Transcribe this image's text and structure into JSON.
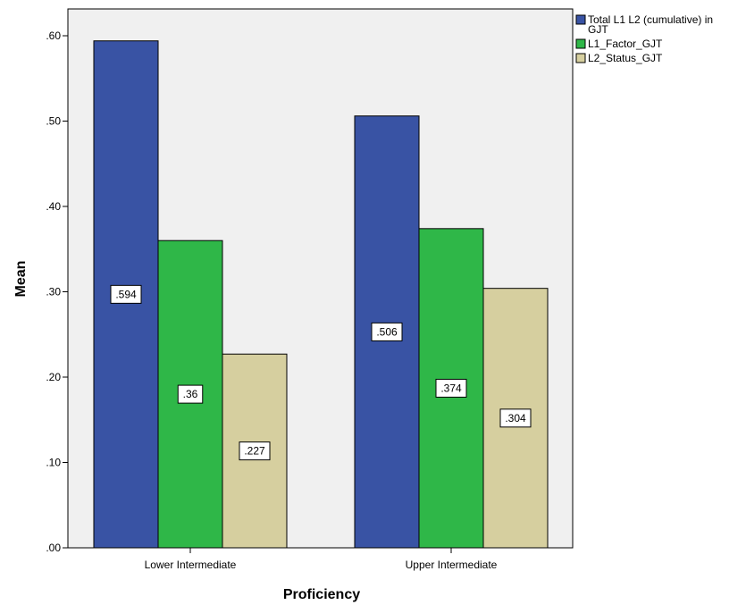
{
  "chart_data": {
    "type": "bar",
    "xlabel": "Proficiency",
    "ylabel": "Mean",
    "categories": [
      "Lower Intermediate",
      "Upper Intermediate"
    ],
    "ylim": [
      0,
      0.65
    ],
    "yticks": [
      ".00",
      ".10",
      ".20",
      ".30",
      ".40",
      ".50",
      ".60"
    ],
    "ytick_values": [
      0,
      0.1,
      0.2,
      0.3,
      0.4,
      0.5,
      0.6
    ],
    "grid": false,
    "legend_position": "top-right",
    "series": [
      {
        "name": "Total L1 L2 (cumulative) in GJT",
        "legend_lines": [
          "Total L1 L2 (cumulative) in",
          "GJT"
        ],
        "color": "#3953a4",
        "values": [
          0.594,
          0.506
        ],
        "labels": [
          ".594",
          ".506"
        ]
      },
      {
        "name": "L1_Factor_GJT",
        "legend_lines": [
          "L1_Factor_GJT"
        ],
        "color": "#2fb748",
        "values": [
          0.36,
          0.374
        ],
        "labels": [
          ".36",
          ".374"
        ]
      },
      {
        "name": "L2_Status_GJT",
        "legend_lines": [
          "L2_Status_GJT"
        ],
        "color": "#d6cf9f",
        "values": [
          0.227,
          0.304
        ],
        "labels": [
          ".227",
          ".304"
        ]
      }
    ]
  }
}
